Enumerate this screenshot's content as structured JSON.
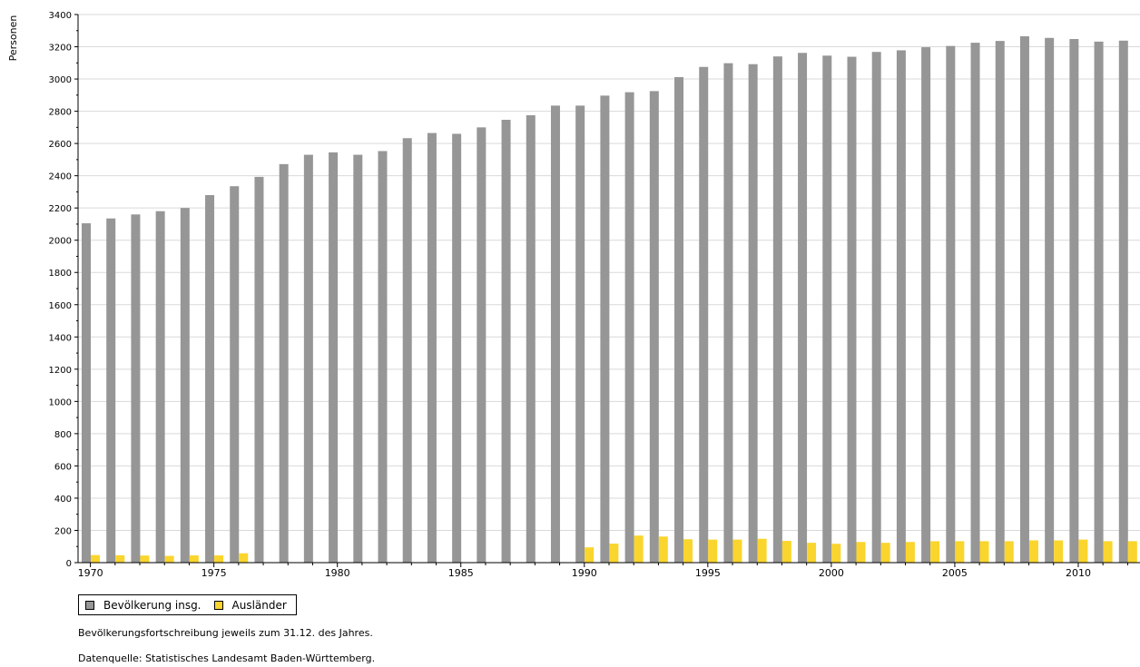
{
  "chart_data": {
    "type": "bar",
    "ylabel": "Personen",
    "ylim": [
      0,
      3400
    ],
    "yticks": [
      0,
      200,
      400,
      600,
      800,
      1000,
      1200,
      1400,
      1600,
      1800,
      2000,
      2200,
      2400,
      2600,
      2800,
      3000,
      3200,
      3400
    ],
    "x_tick_labels": [
      "1970",
      "1975",
      "1980",
      "1985",
      "1990",
      "1995",
      "2000",
      "2005",
      "2010"
    ],
    "categories": [
      "1970",
      "1971",
      "1972",
      "1973",
      "1974",
      "1975",
      "1976",
      "1977",
      "1978",
      "1979",
      "1980",
      "1981",
      "1982",
      "1983",
      "1984",
      "1985",
      "1986",
      "1987",
      "1988",
      "1989",
      "1990",
      "1991",
      "1992",
      "1993",
      "1994",
      "1995",
      "1996",
      "1997",
      "1998",
      "1999",
      "2000",
      "2001",
      "2002",
      "2003",
      "2004",
      "2005",
      "2006",
      "2007",
      "2008",
      "2009",
      "2010",
      "2011",
      "2012"
    ],
    "grid": "horizontal",
    "legend_position": "bottom-left",
    "series": [
      {
        "name": "Bevölkerung insg.",
        "color": "#969696",
        "values": [
          2105,
          2135,
          2160,
          2180,
          2200,
          2280,
          2335,
          2393,
          2472,
          2530,
          2545,
          2530,
          2553,
          2633,
          2665,
          2660,
          2700,
          2747,
          2775,
          2835,
          2835,
          2897,
          2918,
          2925,
          3012,
          3075,
          3098,
          3092,
          3140,
          3162,
          3145,
          3138,
          3168,
          3178,
          3197,
          3205,
          3225,
          3236,
          3265,
          3255,
          3248,
          3232,
          3238
        ]
      },
      {
        "name": "Ausländer",
        "color": "#fad52d",
        "values": [
          47,
          46,
          44,
          42,
          45,
          45,
          58,
          null,
          null,
          null,
          null,
          null,
          null,
          null,
          null,
          null,
          null,
          null,
          null,
          null,
          95,
          118,
          168,
          162,
          145,
          143,
          143,
          148,
          135,
          123,
          117,
          128,
          123,
          128,
          133,
          133,
          133,
          133,
          138,
          138,
          143,
          133,
          133
        ]
      }
    ]
  },
  "notes": {
    "line1": "Bevölkerungsfortschreibung jeweils zum 31.12. des Jahres.",
    "line2": "Datenquelle: Statistisches Landesamt Baden-Württemberg."
  }
}
